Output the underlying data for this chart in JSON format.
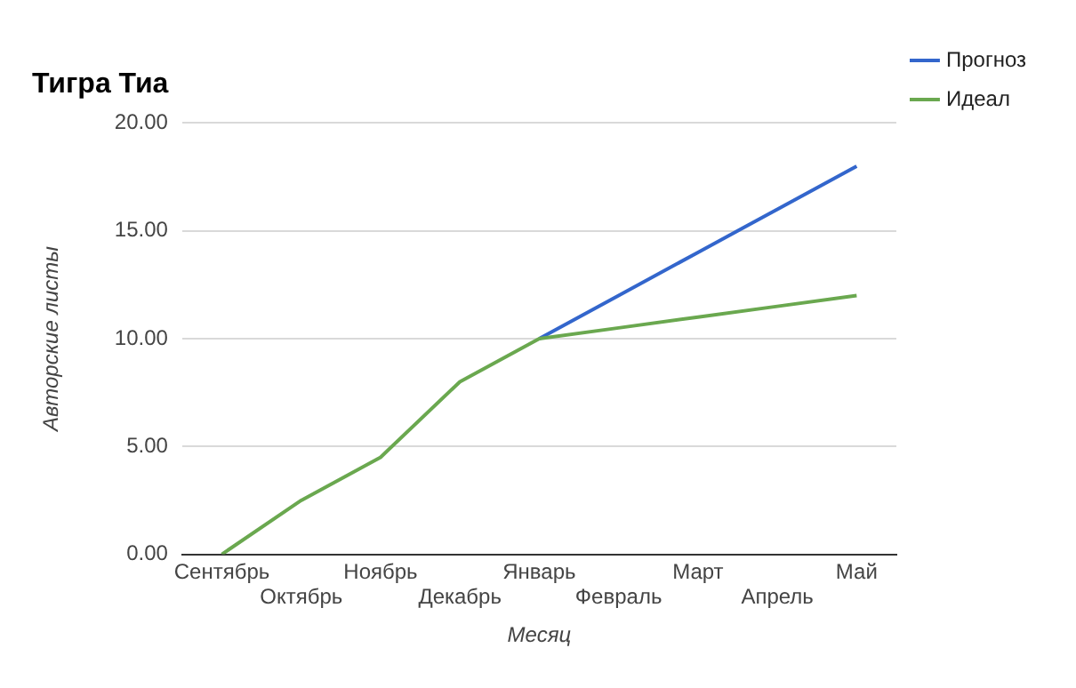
{
  "chart_data": {
    "type": "line",
    "title": "Тигра Тиа",
    "xlabel": "Месяц",
    "ylabel": "Авторские листы",
    "categories": [
      "Сентябрь",
      "Октябрь",
      "Ноябрь",
      "Декабрь",
      "Январь",
      "Февраль",
      "Март",
      "Апрель",
      "Май"
    ],
    "series": [
      {
        "name": "Прогноз",
        "color": "#3366cc",
        "values": [
          null,
          null,
          null,
          null,
          10,
          12,
          14,
          16,
          18
        ]
      },
      {
        "name": "Идеал",
        "color": "#6aa84f",
        "values": [
          0,
          2.5,
          4.5,
          8,
          10,
          10.5,
          11,
          11.5,
          12
        ]
      }
    ],
    "ylim": [
      0,
      20
    ],
    "yticks": [
      {
        "value": 0,
        "label": "0.00"
      },
      {
        "value": 5,
        "label": "5.00"
      },
      {
        "value": 10,
        "label": "10.00"
      },
      {
        "value": 15,
        "label": "15.00"
      },
      {
        "value": 20,
        "label": "20.00"
      }
    ],
    "grid": "y",
    "legend": "top right",
    "marker": "none",
    "line_style": "solid"
  }
}
